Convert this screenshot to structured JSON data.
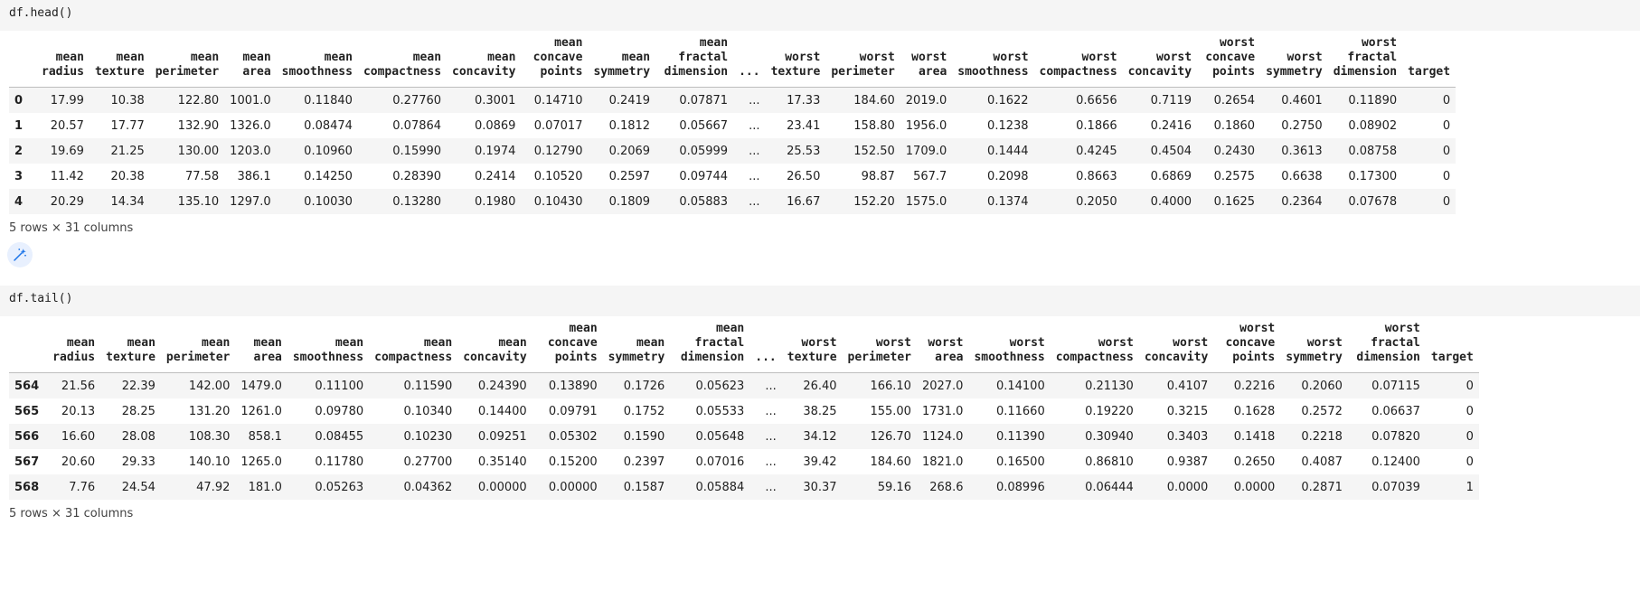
{
  "cell1": {
    "code": "df.head()",
    "columns": [
      "",
      "mean radius",
      "mean texture",
      "mean perimeter",
      "mean area",
      "mean smoothness",
      "mean compactness",
      "mean concavity",
      "mean concave points",
      "mean symmetry",
      "mean fractal dimension",
      "...",
      "worst texture",
      "worst perimeter",
      "worst area",
      "worst smoothness",
      "worst compactness",
      "worst concavity",
      "worst concave points",
      "worst symmetry",
      "worst fractal dimension",
      "target"
    ],
    "rows": [
      [
        "0",
        "17.99",
        "10.38",
        "122.80",
        "1001.0",
        "0.11840",
        "0.27760",
        "0.3001",
        "0.14710",
        "0.2419",
        "0.07871",
        "...",
        "17.33",
        "184.60",
        "2019.0",
        "0.1622",
        "0.6656",
        "0.7119",
        "0.2654",
        "0.4601",
        "0.11890",
        "0"
      ],
      [
        "1",
        "20.57",
        "17.77",
        "132.90",
        "1326.0",
        "0.08474",
        "0.07864",
        "0.0869",
        "0.07017",
        "0.1812",
        "0.05667",
        "...",
        "23.41",
        "158.80",
        "1956.0",
        "0.1238",
        "0.1866",
        "0.2416",
        "0.1860",
        "0.2750",
        "0.08902",
        "0"
      ],
      [
        "2",
        "19.69",
        "21.25",
        "130.00",
        "1203.0",
        "0.10960",
        "0.15990",
        "0.1974",
        "0.12790",
        "0.2069",
        "0.05999",
        "...",
        "25.53",
        "152.50",
        "1709.0",
        "0.1444",
        "0.4245",
        "0.4504",
        "0.2430",
        "0.3613",
        "0.08758",
        "0"
      ],
      [
        "3",
        "11.42",
        "20.38",
        "77.58",
        "386.1",
        "0.14250",
        "0.28390",
        "0.2414",
        "0.10520",
        "0.2597",
        "0.09744",
        "...",
        "26.50",
        "98.87",
        "567.7",
        "0.2098",
        "0.8663",
        "0.6869",
        "0.2575",
        "0.6638",
        "0.17300",
        "0"
      ],
      [
        "4",
        "20.29",
        "14.34",
        "135.10",
        "1297.0",
        "0.10030",
        "0.13280",
        "0.1980",
        "0.10430",
        "0.1809",
        "0.05883",
        "...",
        "16.67",
        "152.20",
        "1575.0",
        "0.1374",
        "0.2050",
        "0.4000",
        "0.1625",
        "0.2364",
        "0.07678",
        "0"
      ]
    ],
    "shape_note": "5 rows × 31 columns"
  },
  "magic_button_icon": "magic-wand-icon",
  "cell2": {
    "code": "df.tail()",
    "columns": [
      "",
      "mean radius",
      "mean texture",
      "mean perimeter",
      "mean area",
      "mean smoothness",
      "mean compactness",
      "mean concavity",
      "mean concave points",
      "mean symmetry",
      "mean fractal dimension",
      "...",
      "worst texture",
      "worst perimeter",
      "worst area",
      "worst smoothness",
      "worst compactness",
      "worst concavity",
      "worst concave points",
      "worst symmetry",
      "worst fractal dimension",
      "target"
    ],
    "rows": [
      [
        "564",
        "21.56",
        "22.39",
        "142.00",
        "1479.0",
        "0.11100",
        "0.11590",
        "0.24390",
        "0.13890",
        "0.1726",
        "0.05623",
        "...",
        "26.40",
        "166.10",
        "2027.0",
        "0.14100",
        "0.21130",
        "0.4107",
        "0.2216",
        "0.2060",
        "0.07115",
        "0"
      ],
      [
        "565",
        "20.13",
        "28.25",
        "131.20",
        "1261.0",
        "0.09780",
        "0.10340",
        "0.14400",
        "0.09791",
        "0.1752",
        "0.05533",
        "...",
        "38.25",
        "155.00",
        "1731.0",
        "0.11660",
        "0.19220",
        "0.3215",
        "0.1628",
        "0.2572",
        "0.06637",
        "0"
      ],
      [
        "566",
        "16.60",
        "28.08",
        "108.30",
        "858.1",
        "0.08455",
        "0.10230",
        "0.09251",
        "0.05302",
        "0.1590",
        "0.05648",
        "...",
        "34.12",
        "126.70",
        "1124.0",
        "0.11390",
        "0.30940",
        "0.3403",
        "0.1418",
        "0.2218",
        "0.07820",
        "0"
      ],
      [
        "567",
        "20.60",
        "29.33",
        "140.10",
        "1265.0",
        "0.11780",
        "0.27700",
        "0.35140",
        "0.15200",
        "0.2397",
        "0.07016",
        "...",
        "39.42",
        "184.60",
        "1821.0",
        "0.16500",
        "0.86810",
        "0.9387",
        "0.2650",
        "0.4087",
        "0.12400",
        "0"
      ],
      [
        "568",
        "7.76",
        "24.54",
        "47.92",
        "181.0",
        "0.05263",
        "0.04362",
        "0.00000",
        "0.00000",
        "0.1587",
        "0.05884",
        "...",
        "30.37",
        "59.16",
        "268.6",
        "0.08996",
        "0.06444",
        "0.0000",
        "0.0000",
        "0.2871",
        "0.07039",
        "1"
      ]
    ],
    "shape_note": "5 rows × 31 columns"
  }
}
